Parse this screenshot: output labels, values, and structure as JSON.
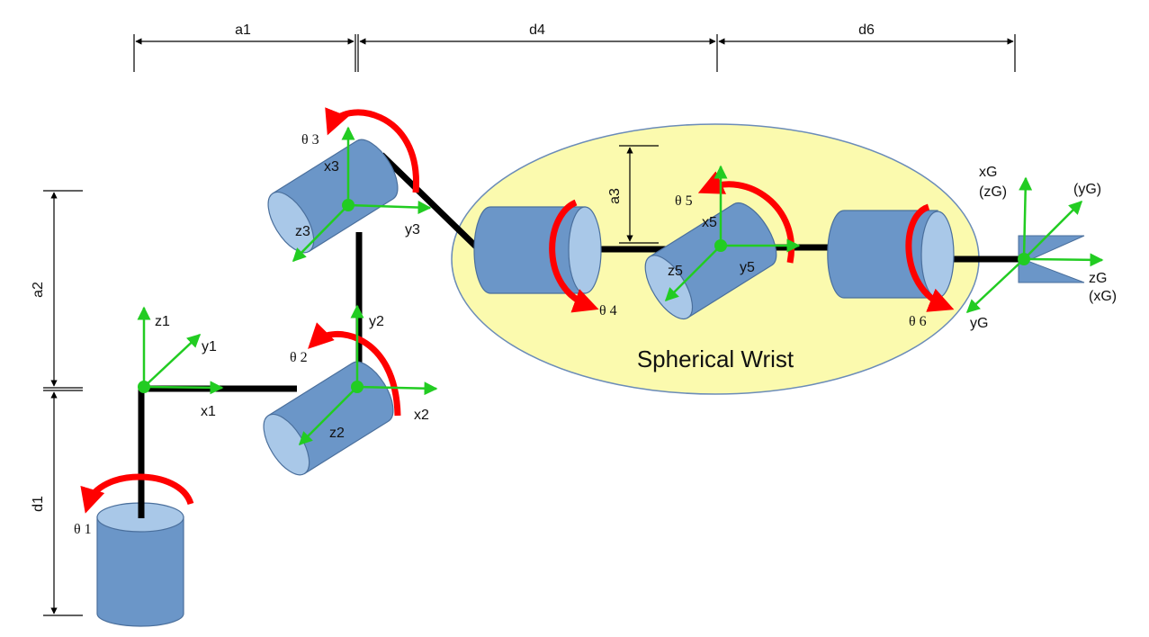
{
  "dimensions": {
    "a1": "a1",
    "d4": "d4",
    "d6": "d6",
    "a2": "a2",
    "d1": "d1",
    "a3": "a3"
  },
  "joint_angles": {
    "t1": "θ 1",
    "t2": "θ 2",
    "t3": "θ 3",
    "t4": "θ 4",
    "t5": "θ 5",
    "t6": "θ 6"
  },
  "frames": {
    "f1": {
      "z": "z1",
      "y": "y1",
      "x": "x1"
    },
    "f2": {
      "y": "y2",
      "x": "x2",
      "z": "z2"
    },
    "f3": {
      "x": "x3",
      "y": "y3",
      "z": "z3"
    },
    "f5": {
      "x": "x5",
      "y": "y5",
      "z": "z5"
    },
    "gripper": {
      "x": "xG",
      "x_alt": "(zG)",
      "y_alt": "(yG)",
      "z": "zG",
      "z_alt": "(xG)",
      "y": "yG"
    }
  },
  "wrist_label": "Spherical Wrist",
  "colors": {
    "link": "#000000",
    "axis": "#22cc22",
    "rotation": "#ff0000",
    "cylinder_body": "#6b96c8",
    "cylinder_face": "#a9c8e8",
    "wrist_fill": "#fbfaae"
  }
}
